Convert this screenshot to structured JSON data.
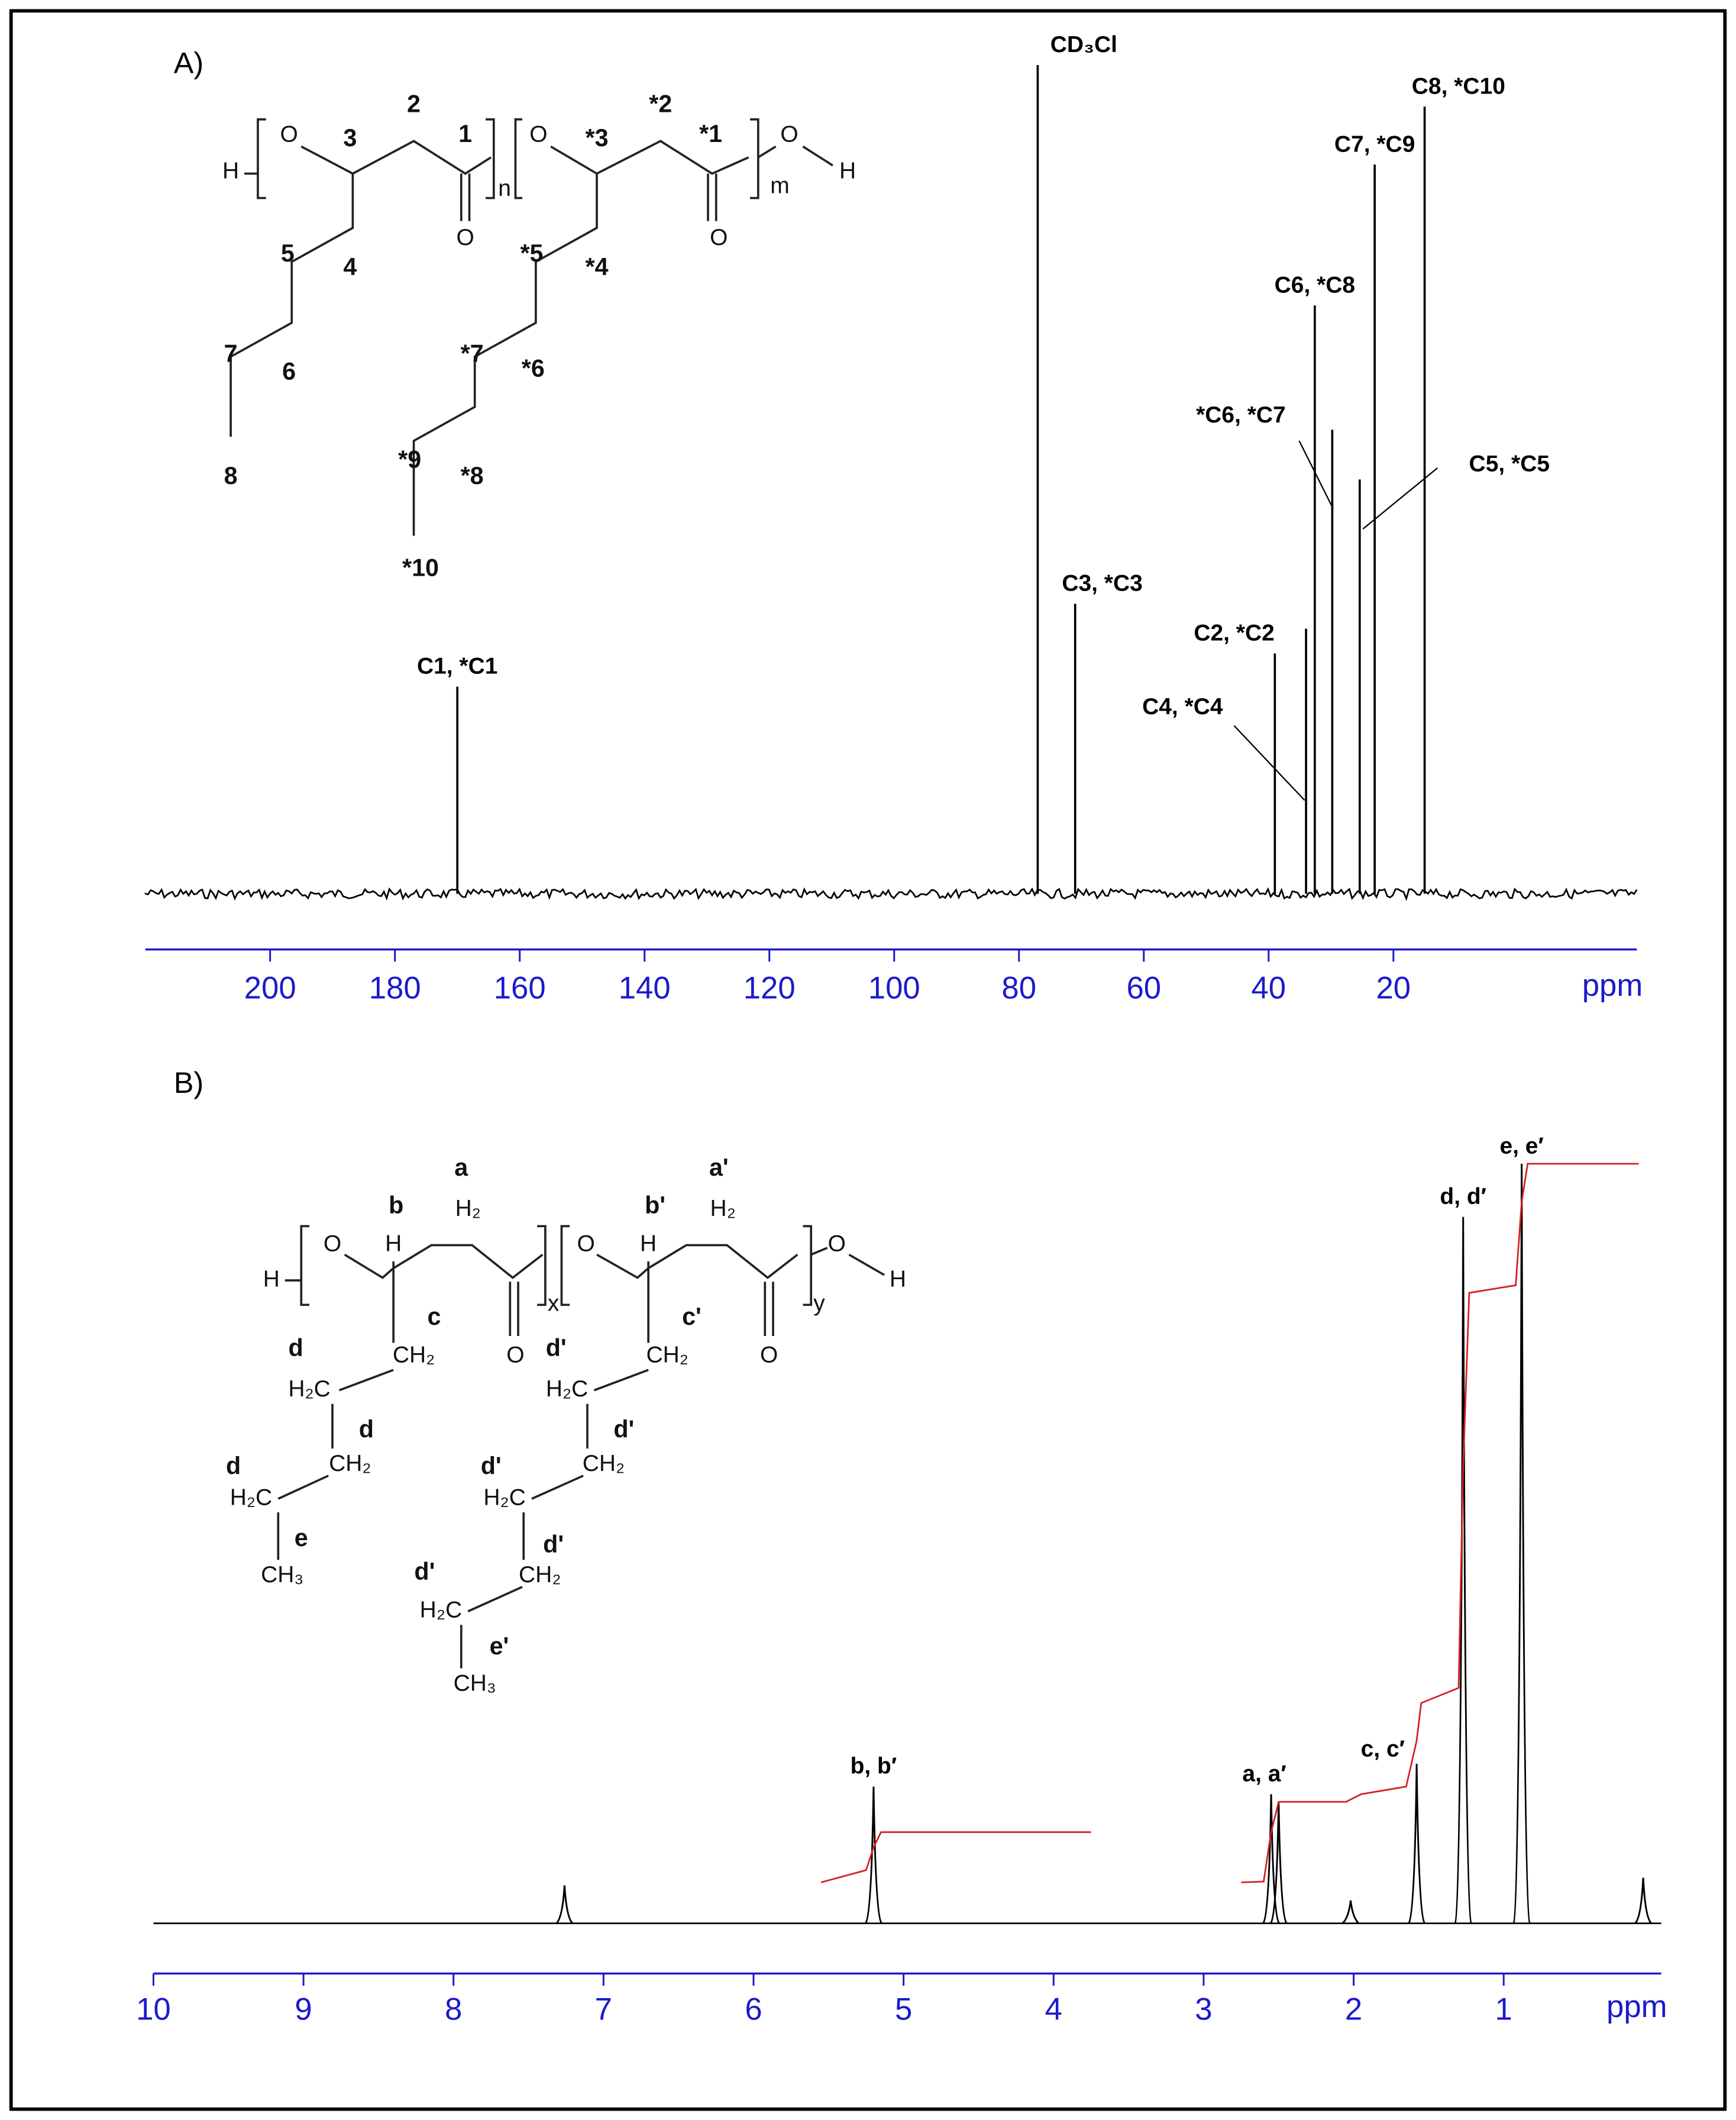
{
  "chart_data": [
    {
      "type": "spectrum",
      "title": "A)",
      "xlabel": "ppm",
      "xlim": [
        220,
        -19
      ],
      "xticks": [
        200,
        180,
        160,
        140,
        120,
        100,
        80,
        60,
        40,
        20
      ],
      "ylim": [
        0,
        100
      ],
      "color": "#000000",
      "axis_color": "#1a1acc",
      "x": [
        170,
        77,
        71,
        39,
        34,
        32.6,
        29.8,
        25.4,
        23,
        15
      ],
      "values": [
        25,
        100,
        35,
        29,
        32,
        71,
        56,
        50,
        88,
        95
      ],
      "peak_labels": [
        "C1, *C1",
        "CD₃Cl",
        "C3, *C3",
        "C2, *C2",
        "C4, *C4",
        "C6, *C8",
        "*C6, *C7",
        "C5, *C5",
        "C7, *C9",
        "C8, *C10"
      ],
      "structure": [
        "H",
        "O",
        "3",
        "2",
        "1",
        "O",
        "n",
        "O",
        "*3",
        "*2",
        "*1",
        "O",
        "m",
        "O",
        "H",
        "5",
        "4",
        "7",
        "6",
        "8",
        "*5",
        "*4",
        "*7",
        "*6",
        "*9",
        "*8",
        "*10"
      ]
    },
    {
      "type": "spectrum",
      "title": "B)",
      "xlabel": "ppm",
      "xlim": [
        10,
        -0.05
      ],
      "xticks": [
        10,
        9,
        8,
        7,
        6,
        5,
        4,
        3,
        2,
        1
      ],
      "ylim": [
        0,
        100
      ],
      "color": "#000000",
      "axis_color": "#1a1acc",
      "x": [
        7.26,
        5.2,
        2.55,
        2.5,
        2.02,
        1.58,
        1.27,
        0.88,
        0.07
      ],
      "values": [
        5,
        18,
        17,
        16,
        3,
        21,
        93,
        100,
        6
      ],
      "peak_labels": [
        null,
        "b, b′",
        "a, a′",
        null,
        null,
        "c, c′",
        "d, d′",
        "e, e′",
        null
      ],
      "integral": {
        "color": "#d42020",
        "x": [
          5.55,
          5.25,
          5.2,
          5.15,
          3.75,
          3.7,
          2.75,
          2.6,
          2.55,
          2.5,
          2.05,
          1.95,
          1.65,
          1.58,
          1.55,
          1.3,
          1.27,
          1.23,
          0.92,
          0.88,
          0.84,
          0.1
        ],
        "values": [
          5.4,
          7,
          10,
          12,
          12,
          null,
          5.4,
          5.5,
          12,
          16,
          16,
          17,
          18,
          24,
          29,
          31,
          60,
          83,
          84,
          95,
          100,
          100
        ]
      },
      "structure": [
        "a",
        "H₂",
        "b",
        "H",
        "H",
        "O",
        "c",
        "CH₂",
        "O",
        "x",
        "d",
        "H₂C",
        "d",
        "CH₂",
        "d",
        "H₂C",
        "e",
        "CH₃",
        "a'",
        "H₂",
        "b'",
        "H",
        "O",
        "c'",
        "CH₂",
        "O",
        "y",
        "O",
        "H",
        "d'",
        "H₂C",
        "d'",
        "CH₂",
        "d'",
        "H₂C",
        "d'",
        "CH₂",
        "d'",
        "H₂C",
        "e'",
        "CH₃"
      ]
    }
  ]
}
